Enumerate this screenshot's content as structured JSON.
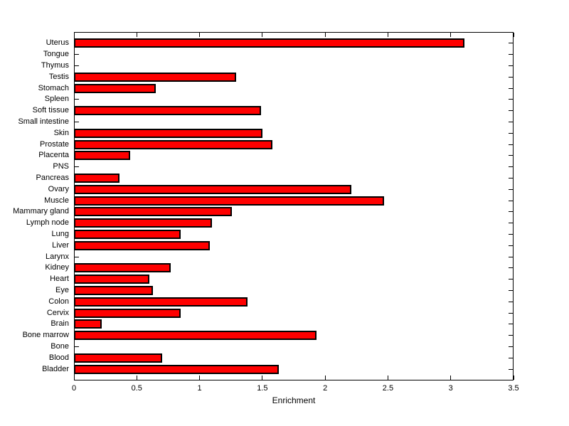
{
  "chart_data": {
    "type": "bar",
    "orientation": "horizontal",
    "title": "",
    "xlabel": "Enrichment",
    "ylabel": "",
    "xlim": [
      0,
      3.5
    ],
    "xticks": [
      0,
      0.5,
      1,
      1.5,
      2,
      2.5,
      3,
      3.5
    ],
    "xtick_labels": [
      "0",
      "0.5",
      "1",
      "1.5",
      "2",
      "2.5",
      "3",
      "3.5"
    ],
    "grid": false,
    "legend_position": "none",
    "bar_color": "#ff0000",
    "bar_edge_color": "#000000",
    "axis_color": "#000000",
    "background_color": "#ffffff",
    "categories": [
      "Uterus",
      "Tongue",
      "Thymus",
      "Testis",
      "Stomach",
      "Spleen",
      "Soft tissue",
      "Small intestine",
      "Skin",
      "Prostate",
      "Placenta",
      "PNS",
      "Pancreas",
      "Ovary",
      "Muscle",
      "Mammary gland",
      "Lymph node",
      "Lung",
      "Liver",
      "Larynx",
      "Kidney",
      "Heart",
      "Eye",
      "Colon",
      "Cervix",
      "Brain",
      "Bone marrow",
      "Bone",
      "Blood",
      "Bladder"
    ],
    "values": [
      3.11,
      0,
      0,
      1.29,
      0.65,
      0,
      1.49,
      0,
      1.5,
      1.58,
      0.45,
      0,
      0.36,
      2.21,
      2.47,
      1.26,
      1.1,
      0.85,
      1.08,
      0,
      0.77,
      0.6,
      0.63,
      1.38,
      0.85,
      0.22,
      1.93,
      0,
      0.7,
      1.63
    ]
  }
}
